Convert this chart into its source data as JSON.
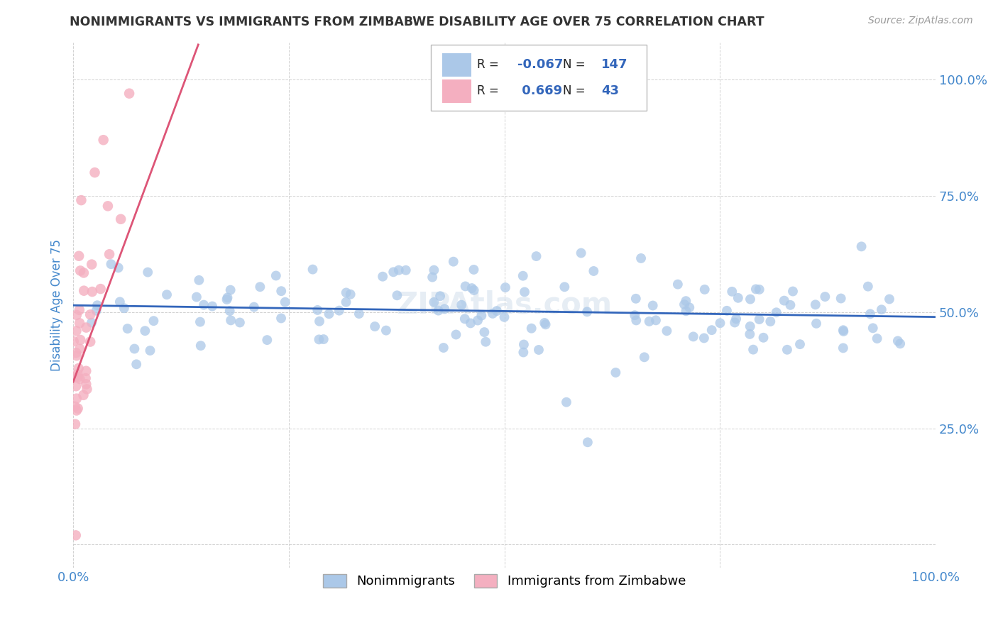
{
  "title": "NONIMMIGRANTS VS IMMIGRANTS FROM ZIMBABWE DISABILITY AGE OVER 75 CORRELATION CHART",
  "source_text": "Source: ZipAtlas.com",
  "ylabel": "Disability Age Over 75",
  "xmin": 0.0,
  "xmax": 1.0,
  "ymin": -0.05,
  "ymax": 1.08,
  "xticks": [
    0.0,
    0.25,
    0.5,
    0.75,
    1.0
  ],
  "xticklabels": [
    "0.0%",
    "",
    "",
    "",
    "100.0%"
  ],
  "yticks": [
    0.0,
    0.25,
    0.5,
    0.75,
    1.0
  ],
  "yticklabels": [
    "",
    "25.0%",
    "50.0%",
    "75.0%",
    "100.0%"
  ],
  "blue_R": -0.067,
  "blue_N": 147,
  "pink_R": 0.669,
  "pink_N": 43,
  "blue_color": "#abc8e8",
  "pink_color": "#f4afc0",
  "blue_line_color": "#3366bb",
  "pink_line_color": "#dd5577",
  "legend_blue_label": "Nonimmigrants",
  "legend_pink_label": "Immigrants from Zimbabwe",
  "watermark": "ZIPAtlas.com",
  "title_color": "#333333",
  "axis_label_color": "#4488cc",
  "tick_label_color": "#4488cc",
  "grid_color": "#cccccc",
  "background_color": "#ffffff"
}
